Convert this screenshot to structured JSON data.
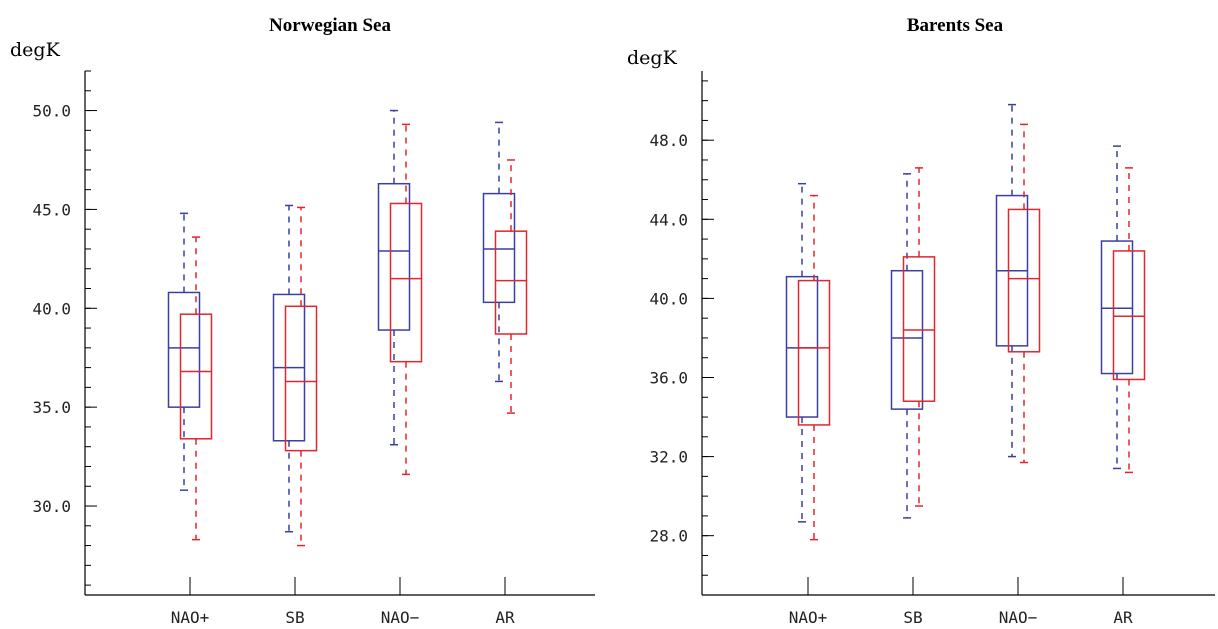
{
  "colors": {
    "series_a": "#3b3fa0",
    "series_b": "#e0262e",
    "axis": "#000000"
  },
  "chart_data": [
    {
      "type": "box",
      "title": "Norwegian Sea",
      "ylabel": "degK",
      "categories": [
        "NAO+",
        "SB",
        "NAO−",
        "AR"
      ],
      "ylim": [
        25.5,
        52.0
      ],
      "yticks": [
        30.0,
        35.0,
        40.0,
        45.0,
        50.0
      ],
      "ytick_labels": [
        "30.0",
        "35.0",
        "40.0",
        "45.0",
        "50.0"
      ],
      "minor_step": 1.0,
      "grid": false,
      "series": [
        {
          "color": "#3b3fa0",
          "boxes": [
            {
              "min": 30.8,
              "q1": 35.0,
              "median": 38.0,
              "q3": 40.8,
              "max": 44.8
            },
            {
              "min": 28.7,
              "q1": 33.3,
              "median": 37.0,
              "q3": 40.7,
              "max": 45.2
            },
            {
              "min": 33.1,
              "q1": 38.9,
              "median": 42.9,
              "q3": 46.3,
              "max": 50.0
            },
            {
              "min": 36.3,
              "q1": 40.3,
              "median": 43.0,
              "q3": 45.8,
              "max": 49.4
            }
          ]
        },
        {
          "color": "#e0262e",
          "boxes": [
            {
              "min": 28.3,
              "q1": 33.4,
              "median": 36.8,
              "q3": 39.7,
              "max": 43.6
            },
            {
              "min": 28.0,
              "q1": 32.8,
              "median": 36.3,
              "q3": 40.1,
              "max": 45.1
            },
            {
              "min": 31.6,
              "q1": 37.3,
              "median": 41.5,
              "q3": 45.3,
              "max": 49.3
            },
            {
              "min": 34.7,
              "q1": 38.7,
              "median": 41.4,
              "q3": 43.9,
              "max": 47.5
            }
          ]
        }
      ]
    },
    {
      "type": "box",
      "title": "Barents Sea",
      "ylabel": "degK",
      "categories": [
        "NAO+",
        "SB",
        "NAO−",
        "AR"
      ],
      "ylim": [
        25.0,
        51.5
      ],
      "yticks": [
        28.0,
        32.0,
        36.0,
        40.0,
        44.0,
        48.0
      ],
      "ytick_labels": [
        "28.0",
        "32.0",
        "36.0",
        "40.0",
        "44.0",
        "48.0"
      ],
      "minor_step": 1.0,
      "grid": false,
      "series": [
        {
          "color": "#3b3fa0",
          "boxes": [
            {
              "min": 28.7,
              "q1": 34.0,
              "median": 37.5,
              "q3": 41.1,
              "max": 45.8
            },
            {
              "min": 28.9,
              "q1": 34.4,
              "median": 38.0,
              "q3": 41.4,
              "max": 46.3
            },
            {
              "min": 32.0,
              "q1": 37.6,
              "median": 41.4,
              "q3": 45.2,
              "max": 49.8
            },
            {
              "min": 31.4,
              "q1": 36.2,
              "median": 39.5,
              "q3": 42.9,
              "max": 47.7
            }
          ]
        },
        {
          "color": "#e0262e",
          "boxes": [
            {
              "min": 27.8,
              "q1": 33.6,
              "median": 37.5,
              "q3": 40.9,
              "max": 45.2
            },
            {
              "min": 29.5,
              "q1": 34.8,
              "median": 38.4,
              "q3": 42.1,
              "max": 46.6
            },
            {
              "min": 31.7,
              "q1": 37.3,
              "median": 41.0,
              "q3": 44.5,
              "max": 48.8
            },
            {
              "min": 31.2,
              "q1": 35.9,
              "median": 39.1,
              "q3": 42.4,
              "max": 46.6
            }
          ]
        }
      ]
    }
  ]
}
